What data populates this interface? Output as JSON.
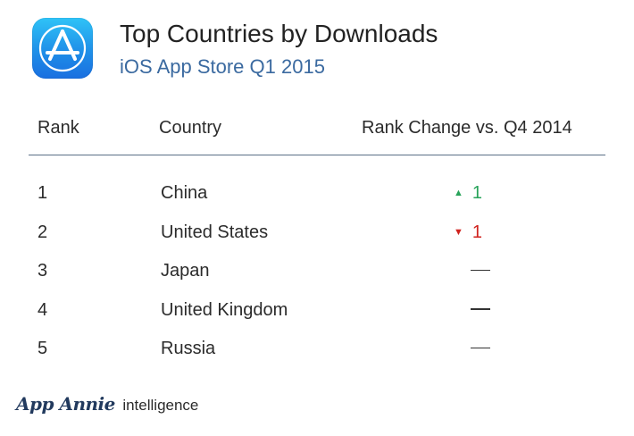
{
  "header": {
    "title": "Top Countries by Downloads",
    "subtitle": "iOS App Store Q1 2015",
    "icon": "app-store-icon",
    "icon_colors": {
      "top": "#2fc3f7",
      "bottom": "#1a6fe0"
    }
  },
  "table": {
    "columns": [
      "Rank",
      "Country",
      "Rank Change vs. Q4 2014"
    ],
    "rows": [
      {
        "rank": "1",
        "country": "China",
        "change": "1",
        "direction": "up"
      },
      {
        "rank": "2",
        "country": "United States",
        "change": "1",
        "direction": "down"
      },
      {
        "rank": "3",
        "country": "Japan",
        "change": "—",
        "direction": "none"
      },
      {
        "rank": "4",
        "country": "United Kingdom",
        "change": "—",
        "direction": "none"
      },
      {
        "rank": "5",
        "country": "Russia",
        "change": "—",
        "direction": "none"
      }
    ],
    "colors": {
      "up": "#28a35a",
      "down": "#d0231f",
      "rule": "#5a6f86"
    }
  },
  "footer": {
    "brand": "App Annie",
    "suffix": "intelligence"
  }
}
